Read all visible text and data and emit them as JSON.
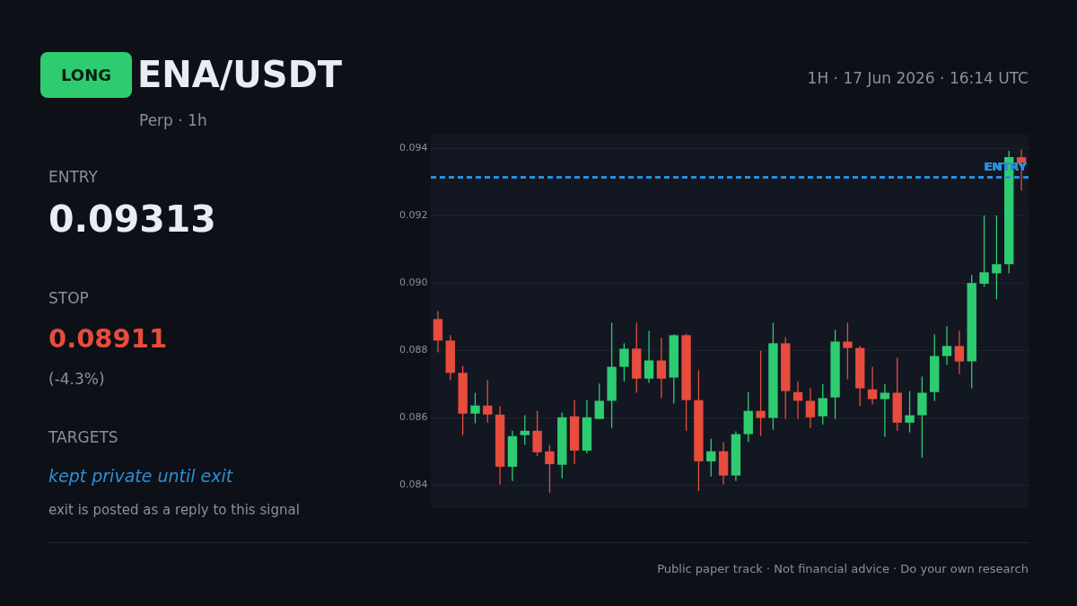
{
  "chart_data": {
    "type": "candlestick",
    "title": "ENA/USDT",
    "subtitle": "Perp · 1h",
    "annotations": [
      "LONG",
      "1H · 17 Jun 2026 · 16:14 UTC",
      "ENTRY",
      "0.09313",
      "STOP",
      "0.08911",
      "(-4.3%)",
      "TARGETS",
      "kept private until exit",
      "exit is posted as a reply to this signal",
      "Public paper track · Not financial advice · Do your own research"
    ],
    "categories": [
      null,
      null,
      null,
      null,
      null,
      null,
      null,
      null,
      null,
      null,
      null,
      null,
      null,
      null,
      null,
      null,
      null,
      null,
      null,
      null,
      null,
      null,
      null,
      null,
      null,
      null,
      null,
      null,
      null,
      null,
      null,
      null,
      null,
      null,
      null,
      null,
      null,
      null,
      null,
      null,
      null,
      null,
      null,
      null,
      null,
      null,
      null,
      null
    ],
    "ohlc": [
      [
        0.08892,
        0.08916,
        0.08793,
        0.08828
      ],
      [
        0.08828,
        0.08844,
        0.0871,
        0.08732
      ],
      [
        0.08732,
        0.08753,
        0.08547,
        0.08611
      ],
      [
        0.08611,
        0.08673,
        0.08582,
        0.08635
      ],
      [
        0.08635,
        0.0871,
        0.08584,
        0.08608
      ],
      [
        0.08608,
        0.08633,
        0.084,
        0.08453
      ],
      [
        0.08453,
        0.0856,
        0.08411,
        0.08544
      ],
      [
        0.08547,
        0.08606,
        0.08518,
        0.0856
      ],
      [
        0.0856,
        0.08619,
        0.08485,
        0.08496
      ],
      [
        0.08499,
        0.08518,
        0.08376,
        0.08461
      ],
      [
        0.08459,
        0.08614,
        0.08419,
        0.086
      ],
      [
        0.08603,
        0.08651,
        0.08461,
        0.08501
      ],
      [
        0.08501,
        0.08651,
        0.08493,
        0.086
      ],
      [
        0.08595,
        0.087,
        0.08595,
        0.08649
      ],
      [
        0.08649,
        0.08881,
        0.08568,
        0.0875
      ],
      [
        0.0875,
        0.0882,
        0.08707,
        0.08804
      ],
      [
        0.08804,
        0.08881,
        0.08673,
        0.08715
      ],
      [
        0.08715,
        0.08857,
        0.08702,
        0.08769
      ],
      [
        0.08769,
        0.08836,
        0.08657,
        0.08715
      ],
      [
        0.08718,
        0.08846,
        0.08641,
        0.08844
      ],
      [
        0.08844,
        0.08849,
        0.0856,
        0.08651
      ],
      [
        0.08651,
        0.0874,
        0.08381,
        0.08469
      ],
      [
        0.08469,
        0.08536,
        0.08424,
        0.08499
      ],
      [
        0.08499,
        0.08526,
        0.084,
        0.08427
      ],
      [
        0.08427,
        0.08558,
        0.08411,
        0.0855
      ],
      [
        0.0855,
        0.08675,
        0.08526,
        0.08619
      ],
      [
        0.08619,
        0.08798,
        0.08544,
        0.08598
      ],
      [
        0.08598,
        0.08881,
        0.08563,
        0.0882
      ],
      [
        0.0882,
        0.08838,
        0.08595,
        0.08678
      ],
      [
        0.08675,
        0.08707,
        0.08595,
        0.08649
      ],
      [
        0.08649,
        0.08686,
        0.08568,
        0.086
      ],
      [
        0.08603,
        0.08699,
        0.08579,
        0.08657
      ],
      [
        0.08659,
        0.0886,
        0.08595,
        0.08825
      ],
      [
        0.08825,
        0.08881,
        0.08713,
        0.08806
      ],
      [
        0.08806,
        0.08812,
        0.08633,
        0.08686
      ],
      [
        0.08683,
        0.0875,
        0.08638,
        0.08654
      ],
      [
        0.08654,
        0.08699,
        0.08542,
        0.08673
      ],
      [
        0.08673,
        0.08777,
        0.0856,
        0.08584
      ],
      [
        0.08584,
        0.08678,
        0.08555,
        0.08606
      ],
      [
        0.08606,
        0.08721,
        0.0848,
        0.08673
      ],
      [
        0.08675,
        0.08846,
        0.08649,
        0.08782
      ],
      [
        0.08782,
        0.08871,
        0.08756,
        0.08812
      ],
      [
        0.08812,
        0.08857,
        0.08729,
        0.08766
      ],
      [
        0.08766,
        0.09023,
        0.08686,
        0.08999
      ],
      [
        0.08997,
        0.092,
        0.08988,
        0.09031
      ],
      [
        0.09028,
        0.092,
        0.08951,
        0.09055
      ],
      [
        0.09055,
        0.09392,
        0.09028,
        0.09373
      ],
      [
        0.09373,
        0.09395,
        0.09274,
        0.09357
      ]
    ],
    "colors": [
      "#e74c3c",
      "#e74c3c",
      "#e74c3c",
      "#2ecc71",
      "#e74c3c",
      "#e74c3c",
      "#2ecc71",
      "#2ecc71",
      "#e74c3c",
      "#e74c3c",
      "#2ecc71",
      "#e74c3c",
      "#2ecc71",
      "#2ecc71",
      "#2ecc71",
      "#2ecc71",
      "#e74c3c",
      "#2ecc71",
      "#e74c3c",
      "#2ecc71",
      "#e74c3c",
      "#e74c3c",
      "#2ecc71",
      "#e74c3c",
      "#2ecc71",
      "#2ecc71",
      "#e74c3c",
      "#2ecc71",
      "#e74c3c",
      "#e74c3c",
      "#e74c3c",
      "#2ecc71",
      "#2ecc71",
      "#e74c3c",
      "#e74c3c",
      "#e74c3c",
      "#2ecc71",
      "#e74c3c",
      "#2ecc71",
      "#2ecc71",
      "#2ecc71",
      "#2ecc71",
      "#e74c3c",
      "#2ecc71",
      "#2ecc71",
      "#2ecc71",
      "#2ecc71",
      "#e74c3c"
    ],
    "ylim": [
      0.0833,
      0.0944
    ],
    "yticks": [
      0.084,
      0.086,
      0.088,
      {
        "value": 0.09,
        "label": "0.090"
      },
      0.092,
      0.094
    ],
    "tick_labels": "y",
    "grid": "y",
    "ref_lines": [
      {
        "axis": "y",
        "value": 0.09313,
        "label": "ENTRY",
        "color": "#2e8fd6",
        "line_style": "dashed"
      }
    ]
  }
}
